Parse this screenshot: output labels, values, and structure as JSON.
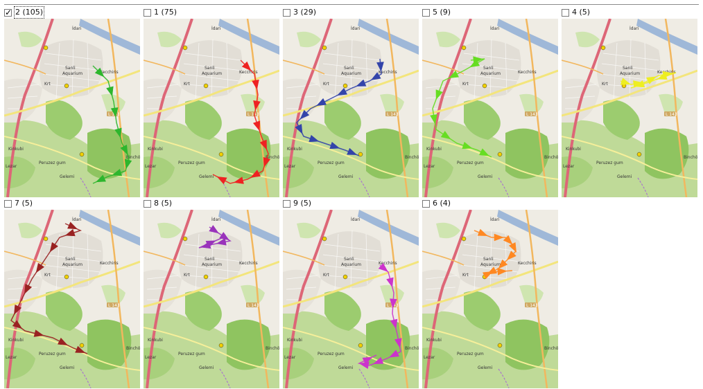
{
  "panels": [
    {
      "label": "2 (105)",
      "checked": true,
      "color": "#2db62d",
      "route": "green"
    },
    {
      "label": "1 (75)",
      "checked": false,
      "color": "#ee2222",
      "route": "red"
    },
    {
      "label": "3 (29)",
      "checked": false,
      "color": "#3344aa",
      "route": "blue"
    },
    {
      "label": "5 (9)",
      "checked": false,
      "color": "#66dd22",
      "route": "lime"
    },
    {
      "label": "4 (5)",
      "checked": false,
      "color": "#eeee22",
      "route": "yellow"
    },
    {
      "label": "7 (5)",
      "checked": false,
      "color": "#992222",
      "route": "darkred"
    },
    {
      "label": "8 (5)",
      "checked": false,
      "color": "#9933bb",
      "route": "purple"
    },
    {
      "label": "9 (5)",
      "checked": false,
      "color": "#cc33cc",
      "route": "magenta"
    },
    {
      "label": "6 (4)",
      "checked": false,
      "color": "#ff8822",
      "route": "orange"
    }
  ],
  "map_labels": {
    "idari": "İdari",
    "sanli": "Sanli",
    "aquarium": "Aquarium",
    "kecchiris": "Kecchiris",
    "krt": "Krt",
    "kinkubi": "Kinkubi",
    "peruzez": "Peruzez gum",
    "bincho": "Binchö",
    "gelemi": "Gelemi",
    "lezar": "Lezar",
    "road_l": "L 143"
  }
}
